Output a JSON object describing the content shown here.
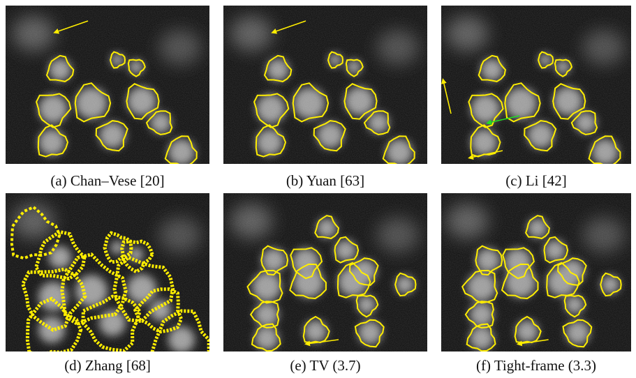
{
  "panels": [
    {
      "caption": "(a) Chan–Vese [20]"
    },
    {
      "caption": "(b) Yuan [63]"
    },
    {
      "caption": "(c) Li [42]"
    },
    {
      "caption": "(d) Zhang [68]"
    },
    {
      "caption": "(e) TV (3.7)"
    },
    {
      "caption": "(f) Tight-frame (3.3)"
    }
  ]
}
